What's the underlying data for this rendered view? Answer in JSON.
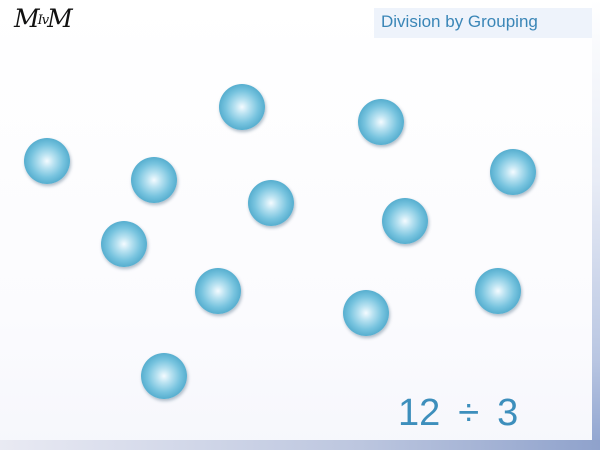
{
  "logo": {
    "text_left": "M",
    "text_mid": "Iv",
    "text_right": "M"
  },
  "header": {
    "title": "Division by Grouping"
  },
  "objects": {
    "count": 12
  },
  "expression": {
    "dividend": "12",
    "operator": "÷",
    "divisor": "3"
  },
  "colors": {
    "title_text": "#3a86b7",
    "title_background": "#eef3fb",
    "ball": "#4aa6c9",
    "expression_text": "#3d8fbc"
  }
}
